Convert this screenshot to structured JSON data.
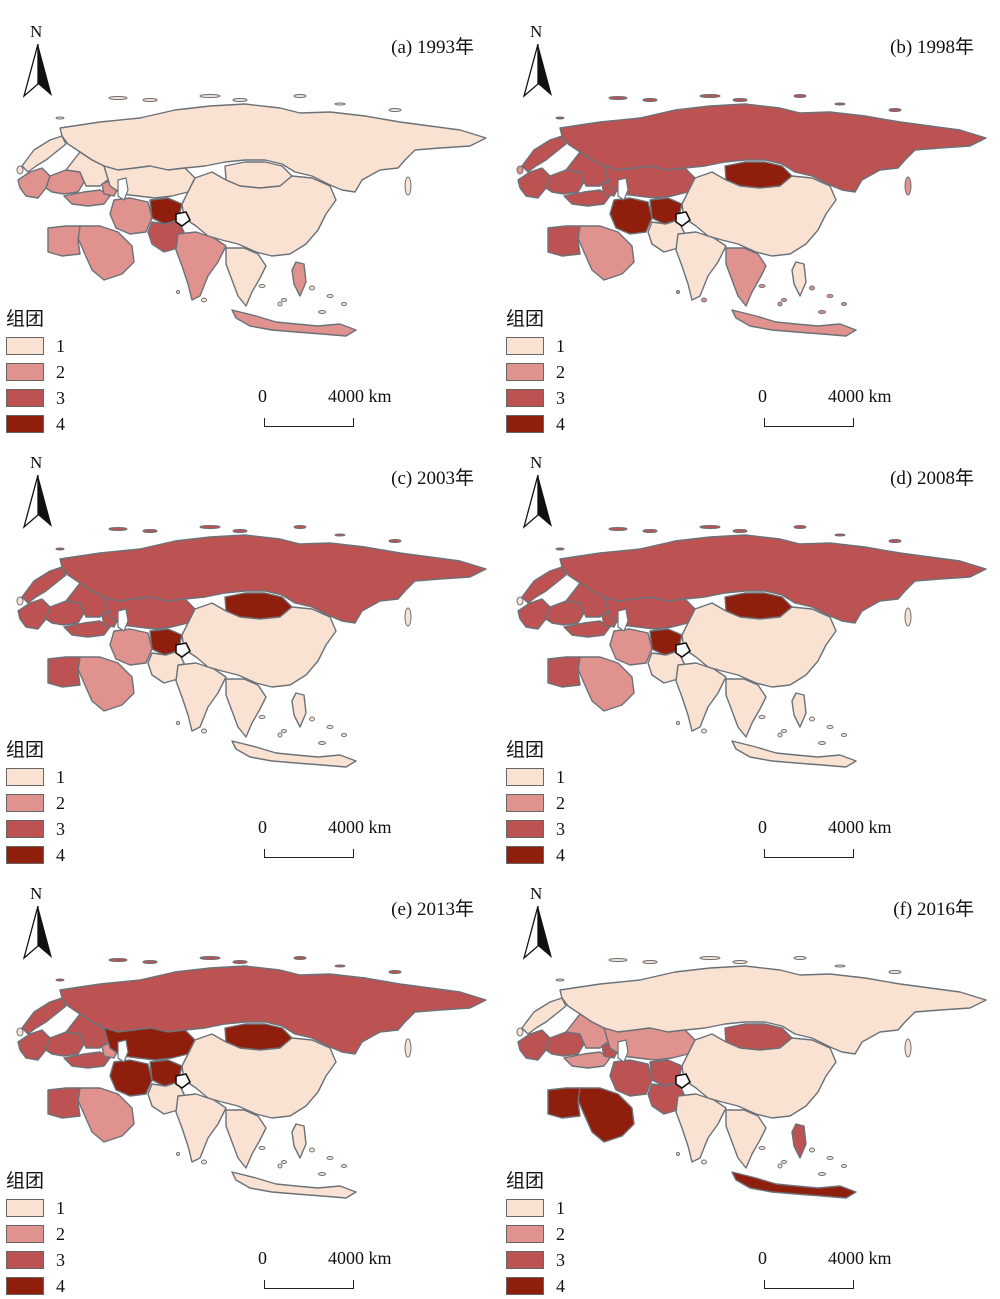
{
  "figure": {
    "legend_title": "组团",
    "north_label": "N",
    "scale_zero": "0",
    "scale_label": "4000 km"
  },
  "legend": [
    {
      "label": "1",
      "color": "#f9e2d2"
    },
    {
      "label": "2",
      "color": "#e0938e"
    },
    {
      "label": "3",
      "color": "#bc5352"
    },
    {
      "label": "4",
      "color": "#8f1f0c"
    }
  ],
  "colors": {
    "c1": "#f9e2d2",
    "c2": "#e0938e",
    "c3": "#bc5352",
    "c4": "#8f1f0c",
    "border": "#6b7178"
  },
  "panels": [
    {
      "title": "(a) 1993年",
      "regions": {
        "russia": 1,
        "nordic": 1,
        "west_europe": 2,
        "central_europe": 2,
        "east_europe": 1,
        "turkey": 2,
        "caucasus": 2,
        "iran": 2,
        "central_asia": 1,
        "afghanistan": 4,
        "pakistan": 3,
        "mongolia": 1,
        "china": 1,
        "india": 2,
        "arabia": 2,
        "egypt": 2,
        "mainland_sea": 1,
        "indonesia": 2,
        "philippines": 2
      }
    },
    {
      "title": "(b) 1998年",
      "regions": {
        "russia": 3,
        "nordic": 3,
        "west_europe": 3,
        "central_europe": 3,
        "east_europe": 3,
        "turkey": 3,
        "caucasus": 3,
        "iran": 4,
        "central_asia": 3,
        "afghanistan": 4,
        "pakistan": 1,
        "mongolia": 4,
        "china": 1,
        "india": 1,
        "arabia": 2,
        "egypt": 3,
        "mainland_sea": 2,
        "indonesia": 2,
        "philippines": 1
      }
    },
    {
      "title": "(c) 2003年",
      "regions": {
        "russia": 3,
        "nordic": 3,
        "west_europe": 3,
        "central_europe": 3,
        "east_europe": 3,
        "turkey": 3,
        "caucasus": 3,
        "iran": 2,
        "central_asia": 3,
        "afghanistan": 4,
        "pakistan": 1,
        "mongolia": 4,
        "china": 1,
        "india": 1,
        "arabia": 2,
        "egypt": 3,
        "mainland_sea": 1,
        "indonesia": 1,
        "philippines": 1
      }
    },
    {
      "title": "(d) 2008年",
      "regions": {
        "russia": 3,
        "nordic": 3,
        "west_europe": 3,
        "central_europe": 3,
        "east_europe": 3,
        "turkey": 3,
        "caucasus": 3,
        "iran": 2,
        "central_asia": 3,
        "afghanistan": 4,
        "pakistan": 1,
        "mongolia": 4,
        "china": 1,
        "india": 1,
        "arabia": 2,
        "egypt": 3,
        "mainland_sea": 1,
        "indonesia": 1,
        "philippines": 1
      }
    },
    {
      "title": "(e) 2013年",
      "regions": {
        "russia": 3,
        "nordic": 3,
        "west_europe": 3,
        "central_europe": 3,
        "east_europe": 3,
        "turkey": 3,
        "caucasus": 2,
        "iran": 4,
        "central_asia": 4,
        "afghanistan": 4,
        "pakistan": 1,
        "mongolia": 4,
        "china": 1,
        "india": 1,
        "arabia": 2,
        "egypt": 3,
        "mainland_sea": 1,
        "indonesia": 1,
        "philippines": 1
      }
    },
    {
      "title": "(f) 2016年",
      "regions": {
        "russia": 1,
        "nordic": 1,
        "west_europe": 3,
        "central_europe": 3,
        "east_europe": 2,
        "turkey": 2,
        "caucasus": 3,
        "iran": 3,
        "central_asia": 2,
        "afghanistan": 3,
        "pakistan": 3,
        "mongolia": 3,
        "china": 1,
        "india": 1,
        "arabia": 4,
        "egypt": 4,
        "mainland_sea": 1,
        "indonesia": 4,
        "philippines": 3
      }
    }
  ]
}
